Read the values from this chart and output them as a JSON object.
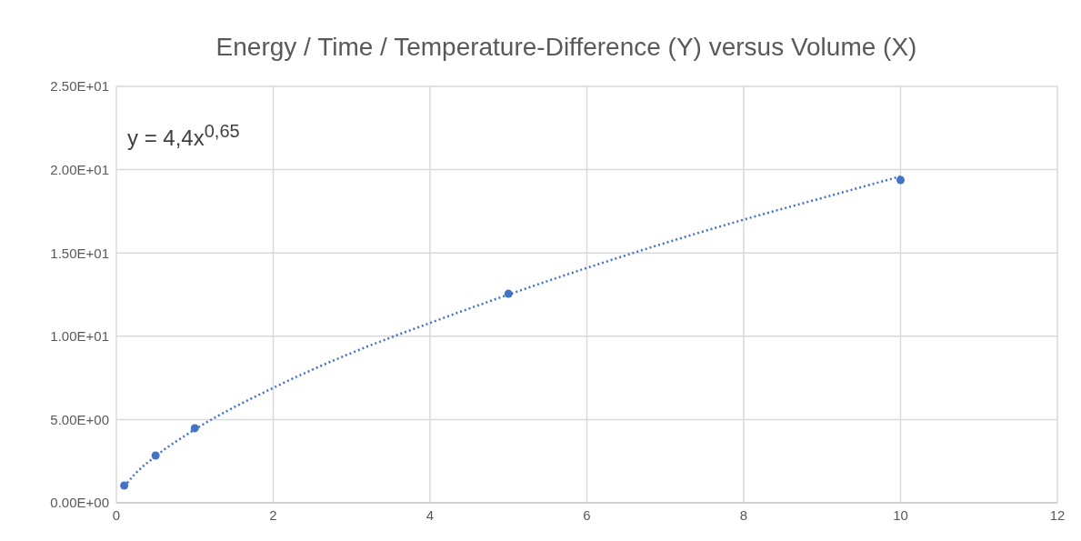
{
  "chart_data": {
    "type": "scatter",
    "title": "Energy / Time / Temperature-Difference  (Y) versus Volume (X)",
    "annotations": [
      "y = 4,4x$^{0,65}$"
    ],
    "xlim": [
      0,
      12
    ],
    "xticks": [
      0,
      2,
      4,
      6,
      8,
      10,
      12
    ],
    "ylim": [
      0,
      25
    ],
    "yticks": [
      {
        "value": 0,
        "label": "0.00E+00"
      },
      {
        "value": 5,
        "label": "5.00E+00"
      },
      {
        "value": 10,
        "label": "1.00E+01"
      },
      {
        "value": 15,
        "label": "1.50E+01"
      },
      {
        "value": 20,
        "label": "2.00E+01"
      },
      {
        "value": 25,
        "label": "2.50E+01"
      }
    ],
    "grid": true,
    "series": [
      {
        "color": "#4472c4",
        "marker": "circle",
        "x": [
          0.1,
          0.5,
          1,
          5,
          10
        ],
        "values": [
          1.04,
          2.84,
          4.48,
          12.55,
          19.38
        ]
      },
      {
        "type": "line",
        "color": "#4472c4",
        "line_style": "dotted",
        "marker": "none",
        "x": [
          0.1,
          0.25,
          0.5,
          1,
          2,
          3,
          4,
          5,
          6,
          7,
          8,
          9,
          10
        ],
        "values": [
          0.98,
          1.79,
          2.8,
          4.4,
          6.9,
          9.0,
          10.8,
          12.5,
          14.1,
          15.6,
          17.0,
          18.3,
          19.6
        ]
      }
    ]
  }
}
